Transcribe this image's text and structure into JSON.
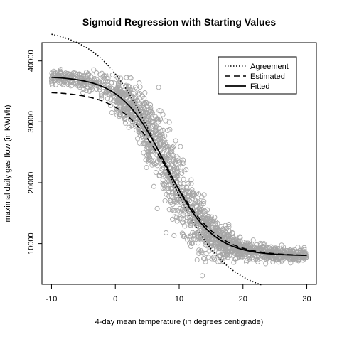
{
  "chart_data": {
    "type": "scatter",
    "title": "Sigmoid Regression with Starting Values",
    "xlabel": "4-day mean temperature (in degrees centigrade)",
    "ylabel": "maximal daily gas flow (in KWh/h)",
    "xlim": [
      -11.5,
      31.5
    ],
    "ylim": [
      3300,
      43000
    ],
    "x_ticks": [
      -10,
      0,
      10,
      20,
      30
    ],
    "x_tick_labels": [
      "-10",
      "0",
      "10",
      "20",
      "30"
    ],
    "y_ticks": [
      10000,
      20000,
      30000,
      40000
    ],
    "y_tick_labels": [
      "10000",
      "20000",
      "30000",
      "40000"
    ],
    "grid": false,
    "legend_position": "top-right",
    "colors": {
      "points": "#a6a6a6",
      "lines": "#000000"
    },
    "scatter_series": {
      "marker": "open-circle",
      "count": 1800,
      "model": {
        "lower": 8000,
        "upper": 37500,
        "midpoint": 8.0,
        "scale": 3.6
      },
      "noise_sd": 2400,
      "x_range": [
        -10,
        30
      ]
    },
    "series": [
      {
        "name": "Agreement",
        "style": "dotted",
        "lower": 1500,
        "upper": 45500,
        "midpoint": 7.5,
        "scale": 4.8,
        "x_range": [
          -10,
          23
        ]
      },
      {
        "name": "Estimated",
        "style": "dashed",
        "lower": 8000,
        "upper": 35000,
        "midpoint": 8.5,
        "scale": 3.8,
        "x_range": [
          -10,
          30
        ]
      },
      {
        "name": "Fitted",
        "style": "solid",
        "lower": 8000,
        "upper": 37500,
        "midpoint": 8.0,
        "scale": 3.6,
        "x_range": [
          -10,
          30
        ]
      }
    ]
  }
}
